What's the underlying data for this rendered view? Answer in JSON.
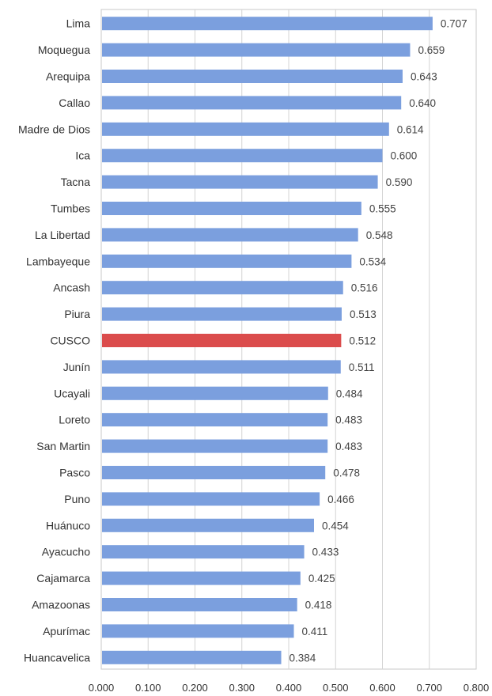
{
  "chart_data": {
    "type": "bar",
    "orientation": "horizontal",
    "categories": [
      "Lima",
      "Moquegua",
      "Arequipa",
      "Callao",
      "Madre de Dios",
      "Ica",
      "Tacna",
      "Tumbes",
      "La Libertad",
      "Lambayeque",
      "Ancash",
      "Piura",
      "CUSCO",
      "Junín",
      "Ucayali",
      "Loreto",
      "San Martin",
      "Pasco",
      "Puno",
      "Huánuco",
      "Ayacucho",
      "Cajamarca",
      "Amazoonas",
      "Apurímac",
      "Huancavelica"
    ],
    "values": [
      0.707,
      0.659,
      0.643,
      0.64,
      0.614,
      0.6,
      0.59,
      0.555,
      0.548,
      0.534,
      0.516,
      0.513,
      0.512,
      0.511,
      0.484,
      0.483,
      0.483,
      0.478,
      0.466,
      0.454,
      0.433,
      0.425,
      0.418,
      0.411,
      0.384
    ],
    "value_labels": [
      "0.707",
      "0.659",
      "0.643",
      "0.640",
      "0.614",
      "0.600",
      "0.590",
      "0.555",
      "0.548",
      "0.534",
      "0.516",
      "0.513",
      "0.512",
      "0.511",
      "0.484",
      "0.483",
      "0.483",
      "0.478",
      "0.466",
      "0.454",
      "0.433",
      "0.425",
      "0.418",
      "0.411",
      "0.384"
    ],
    "highlight_category": "CUSCO",
    "xlim": [
      0,
      0.8
    ],
    "x_ticks": [
      0,
      0.1,
      0.2,
      0.3,
      0.4,
      0.5,
      0.6,
      0.7,
      0.8
    ],
    "x_tick_labels": [
      "0.000",
      "0.100",
      "0.200",
      "0.300",
      "0.400",
      "0.500",
      "0.600",
      "0.700",
      "0.800"
    ],
    "title": "",
    "xlabel": "",
    "ylabel": "",
    "grid": true,
    "legend": "none",
    "colors": {
      "bar": "#7b9fde",
      "highlight": "#db4c4c",
      "grid": "#d4d4d4",
      "border": "#c8c8c8"
    }
  }
}
